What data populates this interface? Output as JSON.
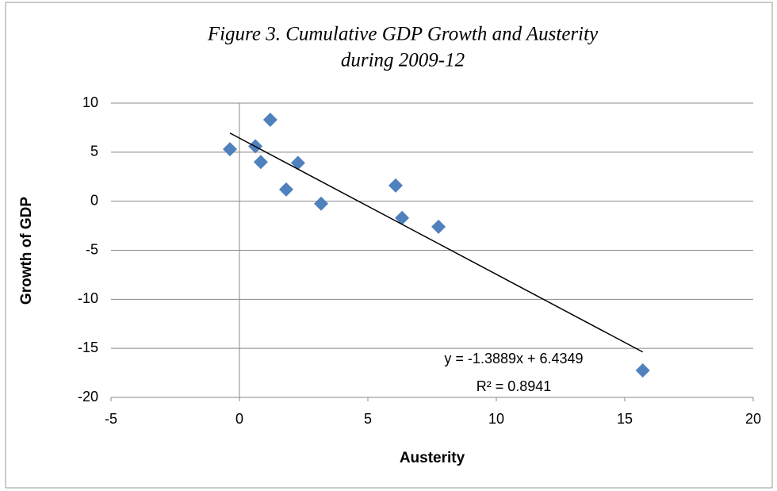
{
  "chart_data": {
    "type": "scatter",
    "title": [
      "Figure 3. Cumulative GDP Growth and Austerity",
      "during 2009-12"
    ],
    "x_label": "Austerity",
    "y_label": "Growth of GDP",
    "series": [
      {
        "name": "Growth of GDP",
        "color": "#4f81bd",
        "x": [
          -0.37,
          0.62,
          0.83,
          1.2,
          1.82,
          2.28,
          3.18,
          6.08,
          6.33,
          7.75,
          15.7
        ],
        "values": [
          5.3,
          5.6,
          4.0,
          8.3,
          1.2,
          3.9,
          -0.25,
          1.6,
          -1.7,
          -2.6,
          -17.25
        ]
      }
    ],
    "trendline": {
      "slope": -1.3889,
      "intercept": 6.4349,
      "color": "#000000",
      "labels": [
        "y = -1.3889x + 6.4349",
        "R² = 0.8941"
      ]
    },
    "xlim": [
      -5,
      20
    ],
    "xticks": [
      -5,
      0,
      5,
      10,
      15,
      20
    ],
    "ylim": [
      -20,
      10
    ],
    "yticks": [
      -20,
      -15,
      -10,
      -5,
      0,
      5,
      10
    ],
    "grid": true
  }
}
